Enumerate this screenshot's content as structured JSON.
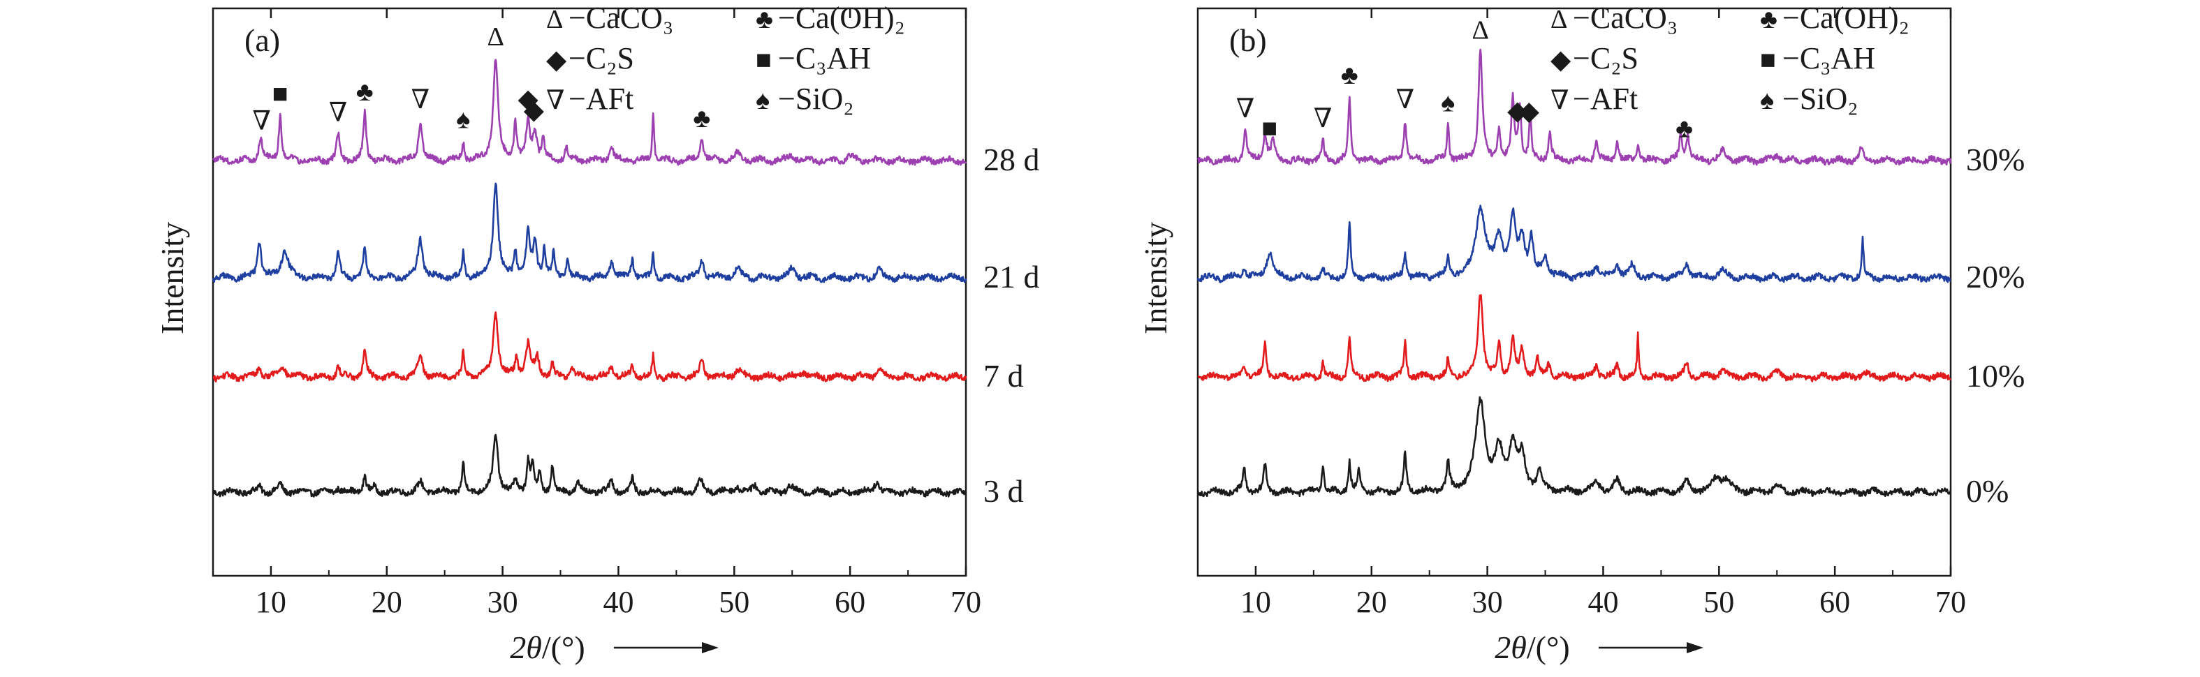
{
  "chart_data": [
    {
      "panel": "(a)",
      "type": "line",
      "xlabel_italic": "2θ",
      "xlabel_rest": "/(°)",
      "ylabel": "Intensity",
      "xlim": [
        5,
        70
      ],
      "x_ticks": [
        10,
        20,
        30,
        40,
        50,
        60,
        70
      ],
      "y_ticks_shown": false,
      "legend": {
        "placement": "top-right",
        "entries": [
          {
            "symbol": "Δ",
            "label": "−CaCO₃"
          },
          {
            "symbol": "♣",
            "label": "−Ca(OH)₂"
          },
          {
            "symbol": "◆",
            "label": "−C₂S"
          },
          {
            "symbol": "■",
            "label": "−C₃AH"
          },
          {
            "symbol": "∇",
            "label": "−AFt"
          },
          {
            "symbol": "♠",
            "label": "−SiO₂"
          }
        ]
      },
      "series": [
        {
          "name": "3 d",
          "color": "#1a1a1a",
          "baseline": 0.0,
          "peaks": [
            [
              9,
              0.06,
              0.2
            ],
            [
              10.8,
              0.08,
              0.2
            ],
            [
              15.8,
              0.05,
              0.2
            ],
            [
              18.1,
              0.18,
              0.15
            ],
            [
              18.9,
              0.05,
              0.15
            ],
            [
              22.9,
              0.1,
              0.25
            ],
            [
              26.6,
              0.3,
              0.12
            ],
            [
              29.4,
              0.6,
              0.25
            ],
            [
              31.1,
              0.12,
              0.15
            ],
            [
              32.2,
              0.33,
              0.15
            ],
            [
              32.6,
              0.28,
              0.15
            ],
            [
              33.2,
              0.2,
              0.12
            ],
            [
              34.3,
              0.3,
              0.12
            ],
            [
              36.5,
              0.1,
              0.2
            ],
            [
              39.4,
              0.12,
              0.2
            ],
            [
              41.2,
              0.14,
              0.15
            ],
            [
              47.1,
              0.12,
              0.25
            ],
            [
              50.2,
              0.06,
              0.3
            ],
            [
              51.8,
              0.08,
              0.2
            ],
            [
              54.8,
              0.06,
              0.3
            ],
            [
              62.3,
              0.12,
              0.25
            ]
          ]
        },
        {
          "name": "7 d",
          "color": "#e31a1c",
          "baseline": 1.0,
          "peaks": [
            [
              9,
              0.1,
              0.2
            ],
            [
              11,
              0.12,
              0.3
            ],
            [
              15.8,
              0.12,
              0.15
            ],
            [
              18.1,
              0.3,
              0.15
            ],
            [
              22.9,
              0.22,
              0.25
            ],
            [
              26.6,
              0.25,
              0.12
            ],
            [
              29.4,
              0.7,
              0.25
            ],
            [
              31.2,
              0.2,
              0.15
            ],
            [
              32.2,
              0.35,
              0.25
            ],
            [
              33,
              0.2,
              0.2
            ],
            [
              34.3,
              0.15,
              0.12
            ],
            [
              36,
              0.1,
              0.2
            ],
            [
              39.4,
              0.12,
              0.2
            ],
            [
              41.2,
              0.12,
              0.15
            ],
            [
              43,
              0.22,
              0.1
            ],
            [
              47.2,
              0.18,
              0.2
            ],
            [
              50.3,
              0.08,
              0.3
            ],
            [
              56,
              0.06,
              0.3
            ],
            [
              62.5,
              0.1,
              0.25
            ]
          ]
        },
        {
          "name": "21 d",
          "color": "#1f3fa0",
          "baseline": 2.0,
          "peaks": [
            [
              9,
              0.38,
              0.2
            ],
            [
              11.2,
              0.3,
              0.35
            ],
            [
              15.8,
              0.28,
              0.15
            ],
            [
              18.1,
              0.3,
              0.15
            ],
            [
              22.9,
              0.42,
              0.25
            ],
            [
              26.6,
              0.26,
              0.12
            ],
            [
              29.4,
              1.02,
              0.25
            ],
            [
              31.1,
              0.3,
              0.15
            ],
            [
              32.2,
              0.45,
              0.2
            ],
            [
              32.8,
              0.35,
              0.2
            ],
            [
              33.6,
              0.3,
              0.15
            ],
            [
              34.4,
              0.25,
              0.12
            ],
            [
              35.6,
              0.18,
              0.15
            ],
            [
              39.4,
              0.18,
              0.2
            ],
            [
              41.2,
              0.2,
              0.15
            ],
            [
              43,
              0.28,
              0.1
            ],
            [
              47.2,
              0.2,
              0.2
            ],
            [
              50.3,
              0.1,
              0.3
            ],
            [
              55,
              0.1,
              0.3
            ],
            [
              62.5,
              0.08,
              0.25
            ]
          ]
        },
        {
          "name": "28 d",
          "color": "#9c3fb0",
          "baseline": 3.0,
          "peaks": [
            [
              9.1,
              0.25,
              0.18
            ],
            [
              10.8,
              0.48,
              0.15
            ],
            [
              15.8,
              0.28,
              0.15
            ],
            [
              18.1,
              0.5,
              0.15
            ],
            [
              22.9,
              0.42,
              0.2
            ],
            [
              26.6,
              0.2,
              0.12
            ],
            [
              29.4,
              1.08,
              0.25
            ],
            [
              31.1,
              0.4,
              0.15
            ],
            [
              32.2,
              0.38,
              0.2
            ],
            [
              32.8,
              0.3,
              0.2
            ],
            [
              33.5,
              0.22,
              0.15
            ],
            [
              35.5,
              0.15,
              0.15
            ],
            [
              39.4,
              0.15,
              0.2
            ],
            [
              43,
              0.5,
              0.1
            ],
            [
              47.2,
              0.22,
              0.2
            ],
            [
              50.3,
              0.08,
              0.3
            ],
            [
              55,
              0.06,
              0.3
            ],
            [
              60,
              0.05,
              0.3
            ]
          ]
        }
      ],
      "series_label_order": [
        "3 d",
        "7 d",
        "21 d",
        "28 d"
      ],
      "peak_markers": [
        {
          "symbol": "∇",
          "x": 9.2
        },
        {
          "symbol": "■",
          "x": 10.8
        },
        {
          "symbol": "∇",
          "x": 15.8
        },
        {
          "symbol": "♣",
          "x": 18.1
        },
        {
          "symbol": "∇",
          "x": 22.9
        },
        {
          "symbol": "♠",
          "x": 26.6
        },
        {
          "symbol": "Δ",
          "x": 29.4
        },
        {
          "symbol": "◆",
          "x": 32.2
        },
        {
          "symbol": "◆",
          "x": 32.7
        },
        {
          "symbol": "♣",
          "x": 47.2
        }
      ]
    },
    {
      "panel": "(b)",
      "type": "line",
      "xlabel_italic": "2θ",
      "xlabel_rest": "/(°)",
      "ylabel": "Intensity",
      "xlim": [
        5,
        70
      ],
      "x_ticks": [
        10,
        20,
        30,
        40,
        50,
        60,
        70
      ],
      "y_ticks_shown": false,
      "legend": {
        "placement": "top-right",
        "entries": [
          {
            "symbol": "Δ",
            "label": "−CaCO₃"
          },
          {
            "symbol": "♣",
            "label": "−Ca(OH)₂"
          },
          {
            "symbol": "◆",
            "label": "−C₂S"
          },
          {
            "symbol": "■",
            "label": "−C₃AH"
          },
          {
            "symbol": "∇",
            "label": "−AFt"
          },
          {
            "symbol": "♠",
            "label": "−SiO₂"
          }
        ]
      },
      "series": [
        {
          "name": "0%",
          "color": "#1a1a1a",
          "baseline": 0.0,
          "peaks": [
            [
              9,
              0.25,
              0.15
            ],
            [
              10.8,
              0.28,
              0.15
            ],
            [
              15.8,
              0.3,
              0.12
            ],
            [
              18.1,
              0.32,
              0.12
            ],
            [
              18.9,
              0.2,
              0.15
            ],
            [
              22.9,
              0.42,
              0.12
            ],
            [
              26.6,
              0.3,
              0.15
            ],
            [
              29.4,
              0.95,
              0.5
            ],
            [
              31,
              0.4,
              0.4
            ],
            [
              32.2,
              0.5,
              0.4
            ],
            [
              33,
              0.35,
              0.3
            ],
            [
              34.5,
              0.2,
              0.3
            ],
            [
              39.4,
              0.12,
              0.3
            ],
            [
              41.2,
              0.12,
              0.3
            ],
            [
              47.2,
              0.1,
              0.3
            ],
            [
              49.8,
              0.15,
              0.4
            ],
            [
              50.6,
              0.12,
              0.4
            ],
            [
              55,
              0.06,
              0.4
            ]
          ]
        },
        {
          "name": "10%",
          "color": "#e31a1c",
          "baseline": 1.0,
          "peaks": [
            [
              9,
              0.12,
              0.2
            ],
            [
              10.8,
              0.35,
              0.15
            ],
            [
              15.8,
              0.15,
              0.12
            ],
            [
              18.1,
              0.42,
              0.12
            ],
            [
              22.9,
              0.38,
              0.12
            ],
            [
              26.6,
              0.18,
              0.12
            ],
            [
              29.4,
              0.9,
              0.25
            ],
            [
              31,
              0.35,
              0.15
            ],
            [
              32.2,
              0.4,
              0.2
            ],
            [
              33,
              0.28,
              0.2
            ],
            [
              34.3,
              0.2,
              0.15
            ],
            [
              35.3,
              0.15,
              0.15
            ],
            [
              39.4,
              0.12,
              0.2
            ],
            [
              41.2,
              0.15,
              0.15
            ],
            [
              43,
              0.45,
              0.08
            ],
            [
              47.2,
              0.15,
              0.2
            ],
            [
              50.3,
              0.08,
              0.3
            ],
            [
              55,
              0.05,
              0.3
            ],
            [
              62.5,
              0.05,
              0.3
            ]
          ]
        },
        {
          "name": "20%",
          "color": "#1f3fa0",
          "baseline": 2.0,
          "peaks": [
            [
              9,
              0.1,
              0.2
            ],
            [
              11.2,
              0.28,
              0.3
            ],
            [
              15.8,
              0.08,
              0.15
            ],
            [
              18.1,
              0.55,
              0.12
            ],
            [
              22.9,
              0.25,
              0.15
            ],
            [
              26.6,
              0.2,
              0.15
            ],
            [
              29.4,
              0.72,
              0.5
            ],
            [
              31,
              0.4,
              0.4
            ],
            [
              32.2,
              0.58,
              0.3
            ],
            [
              33,
              0.4,
              0.3
            ],
            [
              33.8,
              0.38,
              0.2
            ],
            [
              35,
              0.2,
              0.3
            ],
            [
              39.4,
              0.12,
              0.3
            ],
            [
              41.2,
              0.12,
              0.3
            ],
            [
              42.5,
              0.12,
              0.3
            ],
            [
              47.2,
              0.15,
              0.3
            ],
            [
              50.3,
              0.08,
              0.4
            ],
            [
              62.4,
              0.4,
              0.1
            ]
          ]
        },
        {
          "name": "30%",
          "color": "#9c3fb0",
          "baseline": 3.0,
          "peaks": [
            [
              9.1,
              0.32,
              0.15
            ],
            [
              10.8,
              0.28,
              0.2
            ],
            [
              11.5,
              0.2,
              0.2
            ],
            [
              15.8,
              0.22,
              0.12
            ],
            [
              18.1,
              0.68,
              0.12
            ],
            [
              22.9,
              0.42,
              0.15
            ],
            [
              26.6,
              0.38,
              0.12
            ],
            [
              29.4,
              1.15,
              0.2
            ],
            [
              31,
              0.32,
              0.15
            ],
            [
              32.2,
              0.65,
              0.15
            ],
            [
              32.8,
              0.58,
              0.15
            ],
            [
              33.7,
              0.45,
              0.12
            ],
            [
              35.4,
              0.3,
              0.15
            ],
            [
              39.4,
              0.22,
              0.15
            ],
            [
              41.2,
              0.22,
              0.15
            ],
            [
              43,
              0.18,
              0.15
            ],
            [
              46.7,
              0.28,
              0.15
            ],
            [
              47.3,
              0.28,
              0.15
            ],
            [
              50.3,
              0.1,
              0.3
            ],
            [
              55,
              0.06,
              0.3
            ],
            [
              62.3,
              0.12,
              0.2
            ]
          ]
        }
      ],
      "series_label_order": [
        "0%",
        "10%",
        "20%",
        "30%"
      ],
      "peak_markers": [
        {
          "symbol": "∇",
          "x": 9.1
        },
        {
          "symbol": "■",
          "x": 11.2
        },
        {
          "symbol": "∇",
          "x": 15.8
        },
        {
          "symbol": "♣",
          "x": 18.1
        },
        {
          "symbol": "∇",
          "x": 22.9
        },
        {
          "symbol": "♠",
          "x": 26.6
        },
        {
          "symbol": "Δ",
          "x": 29.4
        },
        {
          "symbol": "◆",
          "x": 32.6
        },
        {
          "symbol": "◆",
          "x": 33.6
        },
        {
          "symbol": "♣",
          "x": 47
        }
      ]
    }
  ]
}
